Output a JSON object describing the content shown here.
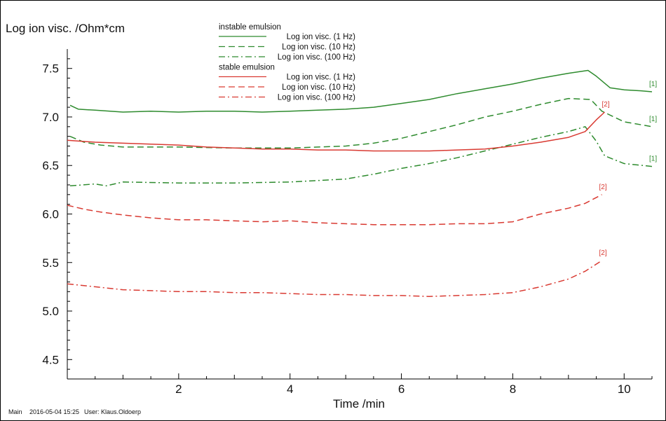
{
  "footer": {
    "left": "Main",
    "datetime": "2016-05-04 15:25",
    "user": "User: Klaus.Oldoerp"
  },
  "chart_data": {
    "type": "line",
    "ylabel": "Log ion visc. /Ohm*cm",
    "xlabel": "Time /min",
    "xlim": [
      0,
      10.5
    ],
    "ylim": [
      4.3,
      7.7
    ],
    "xticks": [
      2,
      4,
      6,
      8,
      10
    ],
    "yticks": [
      4.5,
      5.0,
      5.5,
      6.0,
      6.5,
      7.0,
      7.5
    ],
    "grid": false,
    "legend_placement": "top-center",
    "groups": [
      {
        "title": "instable emulsion",
        "color": "#2e8b2e",
        "series": [
          {
            "name": "Log ion visc. (1 Hz)",
            "style": "solid",
            "end_label": "[1]",
            "points": [
              [
                0.05,
                7.12
              ],
              [
                0.2,
                7.08
              ],
              [
                0.5,
                7.07
              ],
              [
                1,
                7.05
              ],
              [
                1.5,
                7.06
              ],
              [
                2,
                7.05
              ],
              [
                2.5,
                7.06
              ],
              [
                3,
                7.06
              ],
              [
                3.5,
                7.05
              ],
              [
                4,
                7.06
              ],
              [
                4.5,
                7.07
              ],
              [
                5,
                7.08
              ],
              [
                5.5,
                7.1
              ],
              [
                6,
                7.14
              ],
              [
                6.5,
                7.18
              ],
              [
                7,
                7.24
              ],
              [
                7.5,
                7.29
              ],
              [
                8,
                7.34
              ],
              [
                8.5,
                7.4
              ],
              [
                9,
                7.45
              ],
              [
                9.35,
                7.48
              ],
              [
                9.5,
                7.42
              ],
              [
                9.75,
                7.3
              ],
              [
                10,
                7.28
              ],
              [
                10.3,
                7.27
              ],
              [
                10.5,
                7.26
              ]
            ]
          },
          {
            "name": "Log ion visc. (10 Hz)",
            "style": "dashed",
            "end_label": "[1]",
            "points": [
              [
                0.05,
                6.8
              ],
              [
                0.3,
                6.74
              ],
              [
                0.6,
                6.71
              ],
              [
                1,
                6.69
              ],
              [
                2,
                6.69
              ],
              [
                3,
                6.68
              ],
              [
                4,
                6.68
              ],
              [
                5,
                6.7
              ],
              [
                5.5,
                6.73
              ],
              [
                6,
                6.78
              ],
              [
                6.5,
                6.85
              ],
              [
                7,
                6.92
              ],
              [
                7.5,
                7.0
              ],
              [
                8,
                7.06
              ],
              [
                8.5,
                7.13
              ],
              [
                9,
                7.19
              ],
              [
                9.4,
                7.18
              ],
              [
                9.6,
                7.06
              ],
              [
                10,
                6.95
              ],
              [
                10.5,
                6.9
              ]
            ]
          },
          {
            "name": "Log ion visc. (100 Hz)",
            "style": "dashdot",
            "end_label": "[1]",
            "points": [
              [
                0.05,
                6.29
              ],
              [
                0.5,
                6.31
              ],
              [
                0.7,
                6.29
              ],
              [
                1,
                6.33
              ],
              [
                2,
                6.32
              ],
              [
                3,
                6.32
              ],
              [
                4,
                6.33
              ],
              [
                5,
                6.36
              ],
              [
                5.5,
                6.41
              ],
              [
                6,
                6.47
              ],
              [
                6.5,
                6.52
              ],
              [
                7,
                6.58
              ],
              [
                7.5,
                6.65
              ],
              [
                8,
                6.72
              ],
              [
                8.5,
                6.79
              ],
              [
                9,
                6.85
              ],
              [
                9.3,
                6.9
              ],
              [
                9.5,
                6.75
              ],
              [
                9.65,
                6.6
              ],
              [
                10,
                6.52
              ],
              [
                10.5,
                6.49
              ]
            ]
          }
        ]
      },
      {
        "title": "stable emulsion",
        "color": "#d93a32",
        "series": [
          {
            "name": "Log ion visc. (1 Hz)",
            "style": "solid",
            "end_label": "[2]",
            "points": [
              [
                0,
                6.76
              ],
              [
                0.5,
                6.74
              ],
              [
                1,
                6.73
              ],
              [
                1.5,
                6.72
              ],
              [
                2,
                6.71
              ],
              [
                2.5,
                6.69
              ],
              [
                3,
                6.68
              ],
              [
                3.5,
                6.67
              ],
              [
                4,
                6.67
              ],
              [
                4.5,
                6.66
              ],
              [
                5,
                6.66
              ],
              [
                5.5,
                6.65
              ],
              [
                6,
                6.65
              ],
              [
                6.5,
                6.65
              ],
              [
                7,
                6.66
              ],
              [
                7.5,
                6.67
              ],
              [
                8,
                6.7
              ],
              [
                8.5,
                6.74
              ],
              [
                9,
                6.79
              ],
              [
                9.3,
                6.85
              ],
              [
                9.5,
                6.97
              ],
              [
                9.65,
                7.05
              ]
            ]
          },
          {
            "name": "Log ion visc. (10 Hz)",
            "style": "dashed",
            "end_label": "[2]",
            "points": [
              [
                0,
                6.09
              ],
              [
                0.3,
                6.05
              ],
              [
                0.6,
                6.02
              ],
              [
                1,
                5.99
              ],
              [
                1.5,
                5.96
              ],
              [
                2,
                5.94
              ],
              [
                2.5,
                5.94
              ],
              [
                3,
                5.93
              ],
              [
                3.5,
                5.92
              ],
              [
                4,
                5.93
              ],
              [
                4.5,
                5.91
              ],
              [
                5,
                5.9
              ],
              [
                5.5,
                5.89
              ],
              [
                6,
                5.89
              ],
              [
                6.5,
                5.89
              ],
              [
                7,
                5.9
              ],
              [
                7.5,
                5.9
              ],
              [
                8,
                5.92
              ],
              [
                8.5,
                6.0
              ],
              [
                9,
                6.06
              ],
              [
                9.3,
                6.11
              ],
              [
                9.6,
                6.2
              ]
            ]
          },
          {
            "name": "Log ion visc. (100 Hz)",
            "style": "dashdot",
            "end_label": "[2]",
            "points": [
              [
                0,
                5.28
              ],
              [
                0.5,
                5.25
              ],
              [
                1,
                5.22
              ],
              [
                1.5,
                5.21
              ],
              [
                2,
                5.2
              ],
              [
                2.5,
                5.2
              ],
              [
                3,
                5.19
              ],
              [
                3.5,
                5.19
              ],
              [
                4,
                5.18
              ],
              [
                4.5,
                5.17
              ],
              [
                5,
                5.17
              ],
              [
                5.5,
                5.16
              ],
              [
                6,
                5.16
              ],
              [
                6.5,
                5.15
              ],
              [
                7,
                5.16
              ],
              [
                7.5,
                5.17
              ],
              [
                8,
                5.19
              ],
              [
                8.5,
                5.25
              ],
              [
                9,
                5.33
              ],
              [
                9.3,
                5.41
              ],
              [
                9.6,
                5.52
              ]
            ]
          }
        ]
      }
    ]
  }
}
